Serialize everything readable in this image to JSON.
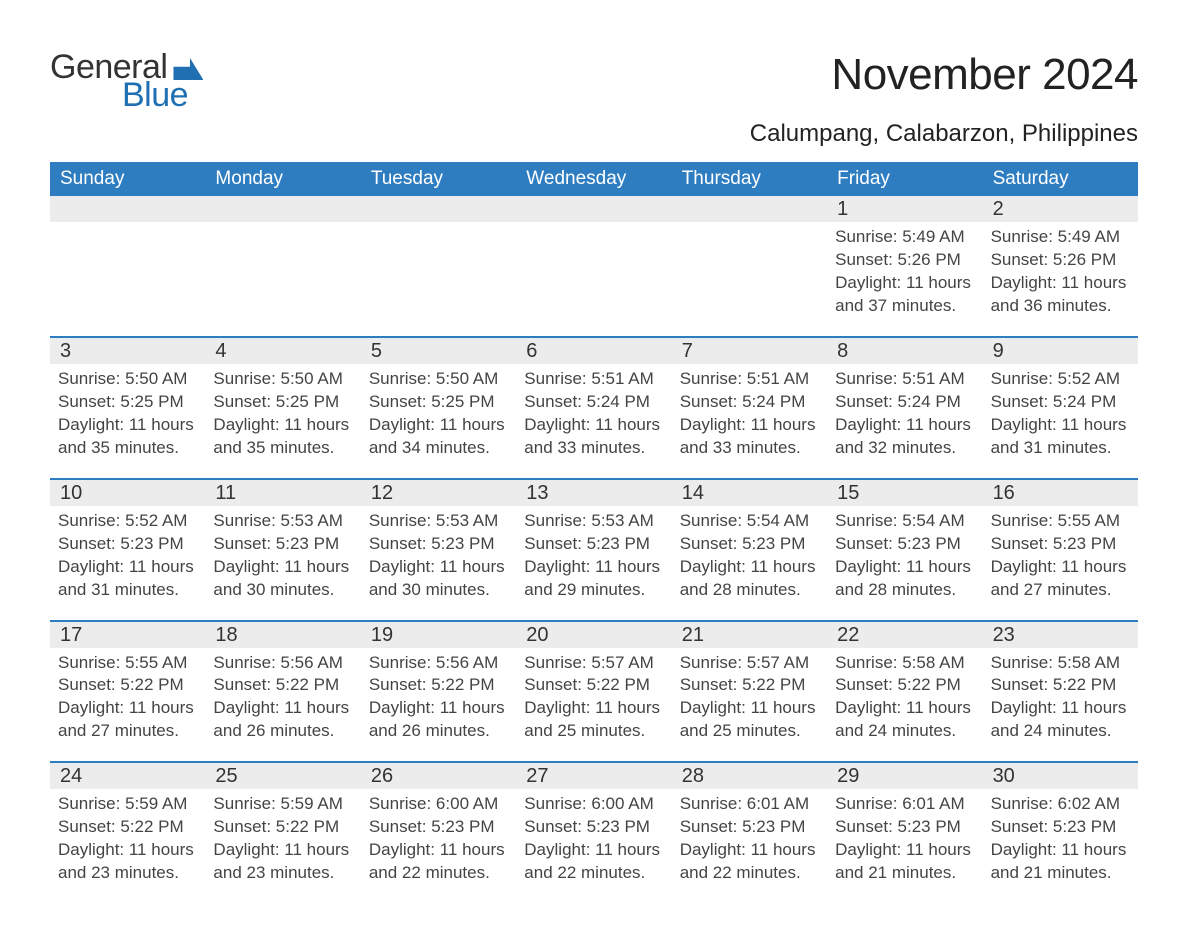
{
  "brand": {
    "word1": "General",
    "word2": "Blue"
  },
  "title": "November 2024",
  "location": "Calumpang, Calabarzon, Philippines",
  "colors": {
    "brand_blue": "#1f6fb2",
    "header_blue": "#2f7dc1",
    "date_band": "#ececec",
    "row_border": "#2f7dc1",
    "text": "#333333",
    "background": "#ffffff"
  },
  "day_headers": [
    "Sunday",
    "Monday",
    "Tuesday",
    "Wednesday",
    "Thursday",
    "Friday",
    "Saturday"
  ],
  "weeks": [
    [
      null,
      null,
      null,
      null,
      null,
      {
        "date": "1",
        "sunrise": "Sunrise: 5:49 AM",
        "sunset": "Sunset: 5:26 PM",
        "daylight": "Daylight: 11 hours and 37 minutes."
      },
      {
        "date": "2",
        "sunrise": "Sunrise: 5:49 AM",
        "sunset": "Sunset: 5:26 PM",
        "daylight": "Daylight: 11 hours and 36 minutes."
      }
    ],
    [
      {
        "date": "3",
        "sunrise": "Sunrise: 5:50 AM",
        "sunset": "Sunset: 5:25 PM",
        "daylight": "Daylight: 11 hours and 35 minutes."
      },
      {
        "date": "4",
        "sunrise": "Sunrise: 5:50 AM",
        "sunset": "Sunset: 5:25 PM",
        "daylight": "Daylight: 11 hours and 35 minutes."
      },
      {
        "date": "5",
        "sunrise": "Sunrise: 5:50 AM",
        "sunset": "Sunset: 5:25 PM",
        "daylight": "Daylight: 11 hours and 34 minutes."
      },
      {
        "date": "6",
        "sunrise": "Sunrise: 5:51 AM",
        "sunset": "Sunset: 5:24 PM",
        "daylight": "Daylight: 11 hours and 33 minutes."
      },
      {
        "date": "7",
        "sunrise": "Sunrise: 5:51 AM",
        "sunset": "Sunset: 5:24 PM",
        "daylight": "Daylight: 11 hours and 33 minutes."
      },
      {
        "date": "8",
        "sunrise": "Sunrise: 5:51 AM",
        "sunset": "Sunset: 5:24 PM",
        "daylight": "Daylight: 11 hours and 32 minutes."
      },
      {
        "date": "9",
        "sunrise": "Sunrise: 5:52 AM",
        "sunset": "Sunset: 5:24 PM",
        "daylight": "Daylight: 11 hours and 31 minutes."
      }
    ],
    [
      {
        "date": "10",
        "sunrise": "Sunrise: 5:52 AM",
        "sunset": "Sunset: 5:23 PM",
        "daylight": "Daylight: 11 hours and 31 minutes."
      },
      {
        "date": "11",
        "sunrise": "Sunrise: 5:53 AM",
        "sunset": "Sunset: 5:23 PM",
        "daylight": "Daylight: 11 hours and 30 minutes."
      },
      {
        "date": "12",
        "sunrise": "Sunrise: 5:53 AM",
        "sunset": "Sunset: 5:23 PM",
        "daylight": "Daylight: 11 hours and 30 minutes."
      },
      {
        "date": "13",
        "sunrise": "Sunrise: 5:53 AM",
        "sunset": "Sunset: 5:23 PM",
        "daylight": "Daylight: 11 hours and 29 minutes."
      },
      {
        "date": "14",
        "sunrise": "Sunrise: 5:54 AM",
        "sunset": "Sunset: 5:23 PM",
        "daylight": "Daylight: 11 hours and 28 minutes."
      },
      {
        "date": "15",
        "sunrise": "Sunrise: 5:54 AM",
        "sunset": "Sunset: 5:23 PM",
        "daylight": "Daylight: 11 hours and 28 minutes."
      },
      {
        "date": "16",
        "sunrise": "Sunrise: 5:55 AM",
        "sunset": "Sunset: 5:23 PM",
        "daylight": "Daylight: 11 hours and 27 minutes."
      }
    ],
    [
      {
        "date": "17",
        "sunrise": "Sunrise: 5:55 AM",
        "sunset": "Sunset: 5:22 PM",
        "daylight": "Daylight: 11 hours and 27 minutes."
      },
      {
        "date": "18",
        "sunrise": "Sunrise: 5:56 AM",
        "sunset": "Sunset: 5:22 PM",
        "daylight": "Daylight: 11 hours and 26 minutes."
      },
      {
        "date": "19",
        "sunrise": "Sunrise: 5:56 AM",
        "sunset": "Sunset: 5:22 PM",
        "daylight": "Daylight: 11 hours and 26 minutes."
      },
      {
        "date": "20",
        "sunrise": "Sunrise: 5:57 AM",
        "sunset": "Sunset: 5:22 PM",
        "daylight": "Daylight: 11 hours and 25 minutes."
      },
      {
        "date": "21",
        "sunrise": "Sunrise: 5:57 AM",
        "sunset": "Sunset: 5:22 PM",
        "daylight": "Daylight: 11 hours and 25 minutes."
      },
      {
        "date": "22",
        "sunrise": "Sunrise: 5:58 AM",
        "sunset": "Sunset: 5:22 PM",
        "daylight": "Daylight: 11 hours and 24 minutes."
      },
      {
        "date": "23",
        "sunrise": "Sunrise: 5:58 AM",
        "sunset": "Sunset: 5:22 PM",
        "daylight": "Daylight: 11 hours and 24 minutes."
      }
    ],
    [
      {
        "date": "24",
        "sunrise": "Sunrise: 5:59 AM",
        "sunset": "Sunset: 5:22 PM",
        "daylight": "Daylight: 11 hours and 23 minutes."
      },
      {
        "date": "25",
        "sunrise": "Sunrise: 5:59 AM",
        "sunset": "Sunset: 5:22 PM",
        "daylight": "Daylight: 11 hours and 23 minutes."
      },
      {
        "date": "26",
        "sunrise": "Sunrise: 6:00 AM",
        "sunset": "Sunset: 5:23 PM",
        "daylight": "Daylight: 11 hours and 22 minutes."
      },
      {
        "date": "27",
        "sunrise": "Sunrise: 6:00 AM",
        "sunset": "Sunset: 5:23 PM",
        "daylight": "Daylight: 11 hours and 22 minutes."
      },
      {
        "date": "28",
        "sunrise": "Sunrise: 6:01 AM",
        "sunset": "Sunset: 5:23 PM",
        "daylight": "Daylight: 11 hours and 22 minutes."
      },
      {
        "date": "29",
        "sunrise": "Sunrise: 6:01 AM",
        "sunset": "Sunset: 5:23 PM",
        "daylight": "Daylight: 11 hours and 21 minutes."
      },
      {
        "date": "30",
        "sunrise": "Sunrise: 6:02 AM",
        "sunset": "Sunset: 5:23 PM",
        "daylight": "Daylight: 11 hours and 21 minutes."
      }
    ]
  ]
}
